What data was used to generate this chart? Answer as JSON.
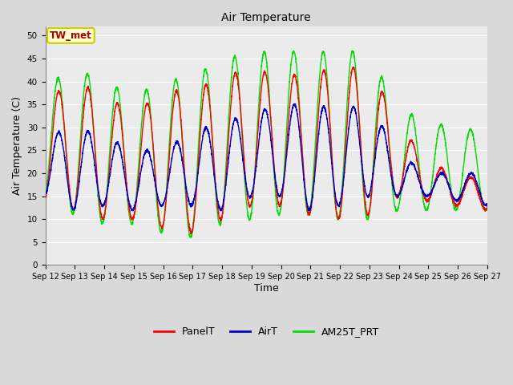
{
  "title": "Air Temperature",
  "xlabel": "Time",
  "ylabel": "Air Temperature (C)",
  "ylim": [
    0,
    52
  ],
  "yticks": [
    0,
    5,
    10,
    15,
    20,
    25,
    30,
    35,
    40,
    45,
    50
  ],
  "legend_labels": [
    "PanelT",
    "AirT",
    "AM25T_PRT"
  ],
  "legend_colors": [
    "#ff0000",
    "#0000cc",
    "#00dd00"
  ],
  "annotation_text": "TW_met",
  "annotation_color": "#aa0000",
  "annotation_bg": "#ffffcc",
  "annotation_edge": "#cccc00",
  "fig_bg_color": "#d9d9d9",
  "plot_bg_color": "#ebebeb",
  "grid_color": "#ffffff",
  "line_width": 1.0,
  "start_day": 12,
  "end_day": 27,
  "panel_mins": [
    14,
    12,
    10,
    10,
    8,
    7,
    10,
    13,
    13,
    11,
    10,
    11,
    15,
    14,
    13
  ],
  "panel_maxs": [
    36,
    40,
    37,
    33,
    38,
    38,
    41,
    43,
    41,
    42,
    43,
    43,
    31,
    22,
    20
  ],
  "air_mins": [
    15,
    12,
    13,
    12,
    13,
    13,
    12,
    15,
    15,
    12,
    13,
    15,
    15,
    15,
    14
  ],
  "air_maxs": [
    28,
    30,
    28,
    25,
    25,
    29,
    31,
    33,
    35,
    35,
    34,
    35,
    24,
    20,
    20
  ],
  "am25_mins": [
    14,
    11,
    9,
    9,
    7,
    6,
    9,
    10,
    11,
    11,
    10,
    10,
    12,
    12,
    12
  ],
  "am25_maxs": [
    39,
    43,
    40,
    37,
    40,
    41,
    45,
    46,
    47,
    46,
    47,
    46,
    34,
    31,
    30
  ],
  "n_points": 3600
}
